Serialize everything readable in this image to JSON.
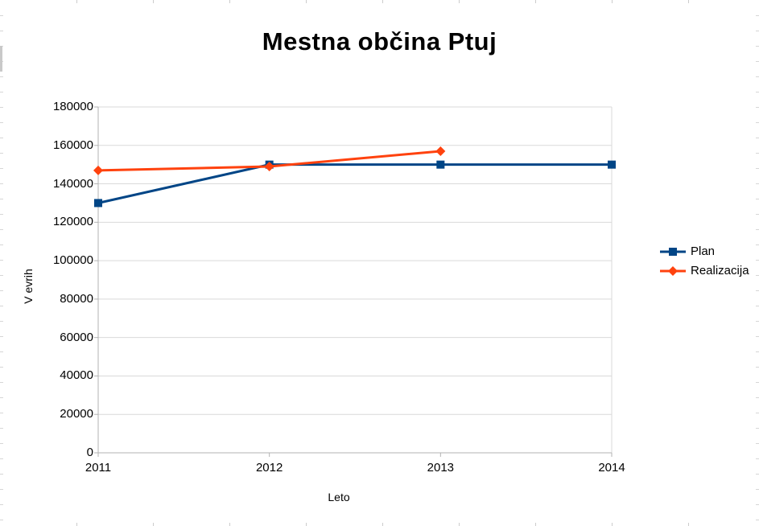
{
  "chart_data": {
    "type": "line",
    "title": "Mestna občina Ptuj",
    "xlabel": "Leto",
    "ylabel": "V evrih",
    "x": [
      "2011",
      "2012",
      "2013",
      "2014"
    ],
    "series": [
      {
        "name": "Plan",
        "color": "#004586",
        "marker": "square",
        "values": [
          130000,
          150000,
          150000,
          150000
        ]
      },
      {
        "name": "Realizacija",
        "color": "#ff420e",
        "marker": "diamond",
        "values": [
          147000,
          149000,
          157000,
          null
        ]
      }
    ],
    "ylim": [
      0,
      180000
    ],
    "yticks": [
      0,
      20000,
      40000,
      60000,
      80000,
      100000,
      120000,
      140000,
      160000,
      180000
    ],
    "grid": "horizontal",
    "legend_position": "right",
    "colors": {
      "grid": "#d9d9d9",
      "axis": "#b3b3b3",
      "text": "#000000"
    }
  }
}
